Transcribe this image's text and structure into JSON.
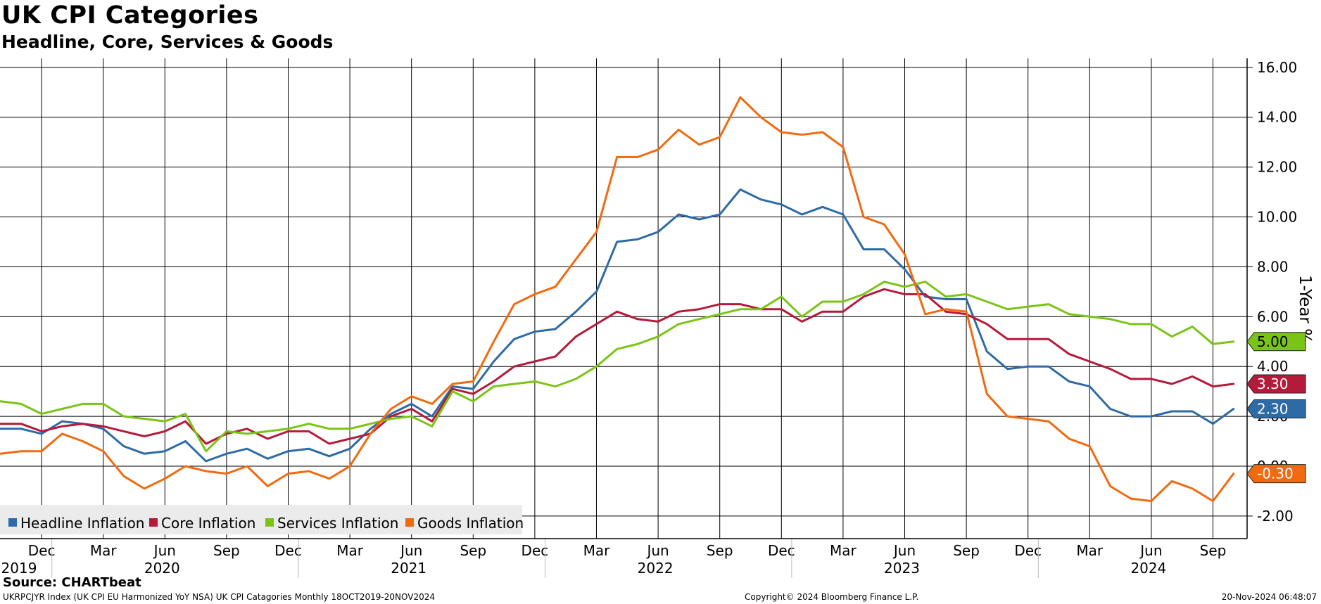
{
  "title": "UK CPI Categories",
  "subtitle": "Headline, Core, Services & Goods",
  "source": "Source: CHARTbeat",
  "footer": {
    "left": "UKRPCJYR Index (UK CPI EU Harmonized YoY NSA) UK CPI Catagories  Monthly 18OCT2019-20NOV2024",
    "center": "Copyright© 2024 Bloomberg Finance L.P.",
    "right": "20-Nov-2024 06:48:07"
  },
  "chart_data": {
    "type": "line",
    "title": "UK CPI Categories",
    "subtitle": "Headline, Core, Services & Goods",
    "ylabel": "1-Year %",
    "ylim": [
      -2.9,
      16.6
    ],
    "yticks": [
      -2,
      0,
      2,
      4,
      6,
      8,
      10,
      12,
      14,
      16
    ],
    "ytick_labels": [
      "-2.00",
      "0.00",
      "2.00",
      "4.00",
      "6.00",
      "8.00",
      "10.00",
      "12.00",
      "14.00",
      "16.00"
    ],
    "grid": true,
    "legend_position": "bottom-left",
    "x": [
      "2019-10",
      "2019-11",
      "2019-12",
      "2020-01",
      "2020-02",
      "2020-03",
      "2020-04",
      "2020-05",
      "2020-06",
      "2020-07",
      "2020-08",
      "2020-09",
      "2020-10",
      "2020-11",
      "2020-12",
      "2021-01",
      "2021-02",
      "2021-03",
      "2021-04",
      "2021-05",
      "2021-06",
      "2021-07",
      "2021-08",
      "2021-09",
      "2021-10",
      "2021-11",
      "2021-12",
      "2022-01",
      "2022-02",
      "2022-03",
      "2022-04",
      "2022-05",
      "2022-06",
      "2022-07",
      "2022-08",
      "2022-09",
      "2022-10",
      "2022-11",
      "2022-12",
      "2023-01",
      "2023-02",
      "2023-03",
      "2023-04",
      "2023-05",
      "2023-06",
      "2023-07",
      "2023-08",
      "2023-09",
      "2023-10",
      "2023-11",
      "2023-12",
      "2024-01",
      "2024-02",
      "2024-03",
      "2024-04",
      "2024-05",
      "2024-06",
      "2024-07",
      "2024-08",
      "2024-09",
      "2024-10"
    ],
    "month_labels": [
      "Dec",
      "Mar",
      "Jun",
      "Sep",
      "Dec",
      "Mar",
      "Jun",
      "Sep",
      "Dec",
      "Mar",
      "Jun",
      "Sep",
      "Dec",
      "Mar",
      "Jun",
      "Sep",
      "Dec",
      "Mar",
      "Jun",
      "Sep"
    ],
    "year_labels": [
      "2019",
      "2020",
      "2021",
      "2022",
      "2023",
      "2024"
    ],
    "series": [
      {
        "name": "Headline Inflation",
        "color": "#2e6ba6",
        "last_label": "2.30",
        "values": [
          1.5,
          1.5,
          1.3,
          1.8,
          1.7,
          1.5,
          0.8,
          0.5,
          0.6,
          1.0,
          0.2,
          0.5,
          0.7,
          0.3,
          0.6,
          0.7,
          0.4,
          0.7,
          1.5,
          2.1,
          2.5,
          2.0,
          3.2,
          3.1,
          4.2,
          5.1,
          5.4,
          5.5,
          6.2,
          7.0,
          9.0,
          9.1,
          9.4,
          10.1,
          9.9,
          10.1,
          11.1,
          10.7,
          10.5,
          10.1,
          10.4,
          10.1,
          8.7,
          8.7,
          7.9,
          6.8,
          6.7,
          6.7,
          4.6,
          3.9,
          4.0,
          4.0,
          3.4,
          3.2,
          2.3,
          2.0,
          2.0,
          2.2,
          2.2,
          1.7,
          2.3
        ]
      },
      {
        "name": "Core Inflation",
        "color": "#b51a3a",
        "last_label": "3.30",
        "values": [
          1.7,
          1.7,
          1.4,
          1.6,
          1.7,
          1.6,
          1.4,
          1.2,
          1.4,
          1.8,
          0.9,
          1.3,
          1.5,
          1.1,
          1.4,
          1.4,
          0.9,
          1.1,
          1.3,
          2.0,
          2.3,
          1.8,
          3.1,
          2.9,
          3.4,
          4.0,
          4.2,
          4.4,
          5.2,
          5.7,
          6.2,
          5.9,
          5.8,
          6.2,
          6.3,
          6.5,
          6.5,
          6.3,
          6.3,
          5.8,
          6.2,
          6.2,
          6.8,
          7.1,
          6.9,
          6.9,
          6.2,
          6.1,
          5.7,
          5.1,
          5.1,
          5.1,
          4.5,
          4.2,
          3.9,
          3.5,
          3.5,
          3.3,
          3.6,
          3.2,
          3.3
        ]
      },
      {
        "name": "Services Inflation",
        "color": "#7ac417",
        "last_label": "5.00",
        "values": [
          2.6,
          2.5,
          2.1,
          2.3,
          2.5,
          2.5,
          2.0,
          1.9,
          1.8,
          2.1,
          0.6,
          1.4,
          1.3,
          1.4,
          1.5,
          1.7,
          1.5,
          1.5,
          1.7,
          1.9,
          2.0,
          1.6,
          3.0,
          2.6,
          3.2,
          3.3,
          3.4,
          3.2,
          3.5,
          4.0,
          4.7,
          4.9,
          5.2,
          5.7,
          5.9,
          6.1,
          6.3,
          6.3,
          6.8,
          6.0,
          6.6,
          6.6,
          6.9,
          7.4,
          7.2,
          7.4,
          6.8,
          6.9,
          6.6,
          6.3,
          6.4,
          6.5,
          6.1,
          6.0,
          5.9,
          5.7,
          5.7,
          5.2,
          5.6,
          4.9,
          5.0
        ]
      },
      {
        "name": "Goods Inflation",
        "color": "#f26a0f",
        "last_label": "-0.30",
        "values": [
          0.5,
          0.6,
          0.6,
          1.3,
          1.0,
          0.6,
          -0.4,
          -0.9,
          -0.5,
          0.0,
          -0.2,
          -0.3,
          0.0,
          -0.8,
          -0.3,
          -0.2,
          -0.5,
          0.0,
          1.3,
          2.3,
          2.8,
          2.5,
          3.3,
          3.4,
          5.0,
          6.5,
          6.9,
          7.2,
          8.3,
          9.4,
          12.4,
          12.4,
          12.7,
          13.5,
          12.9,
          13.2,
          14.8,
          14.0,
          13.4,
          13.3,
          13.4,
          12.8,
          10.0,
          9.7,
          8.5,
          6.1,
          6.3,
          6.2,
          2.9,
          2.0,
          1.9,
          1.8,
          1.1,
          0.8,
          -0.8,
          -1.3,
          -1.4,
          -0.6,
          -0.9,
          -1.4,
          -0.3
        ]
      }
    ]
  }
}
